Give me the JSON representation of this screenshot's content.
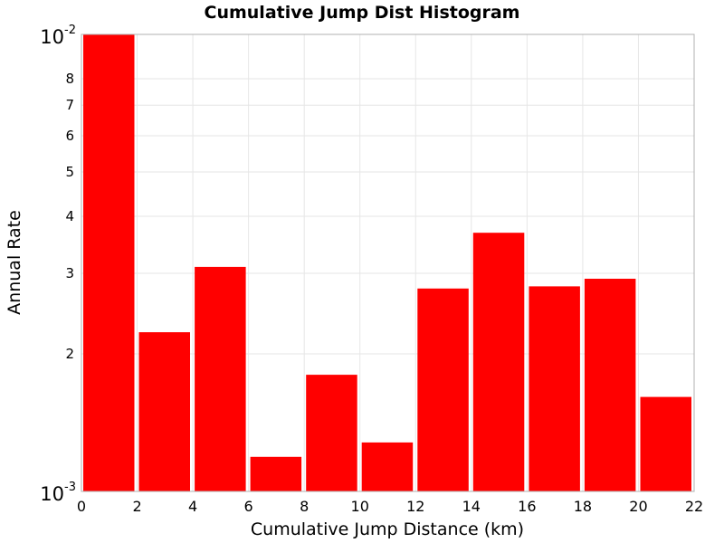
{
  "chart_data": {
    "type": "bar",
    "title": "Cumulative Jump Dist Histogram",
    "xlabel": "Cumulative Jump Distance (km)",
    "ylabel": "Annual Rate",
    "xlim": [
      0,
      22
    ],
    "ylim": [
      0.001,
      0.01
    ],
    "yscale": "log",
    "grid": true,
    "bar_color": "#ff0000",
    "x_ticks": [
      "0",
      "2",
      "4",
      "6",
      "8",
      "10",
      "12",
      "14",
      "16",
      "18",
      "20",
      "22"
    ],
    "y_ticks": [
      {
        "value": 0.001,
        "base": "10",
        "exp": "-3"
      },
      {
        "value": 0.002,
        "label": "2"
      },
      {
        "value": 0.003,
        "label": "3"
      },
      {
        "value": 0.004,
        "label": "4"
      },
      {
        "value": 0.005,
        "label": "5"
      },
      {
        "value": 0.006,
        "label": "6"
      },
      {
        "value": 0.007,
        "label": "7"
      },
      {
        "value": 0.008,
        "label": "8"
      },
      {
        "value": 0.01,
        "base": "10",
        "exp": "-2"
      }
    ],
    "bins": [
      {
        "x0": 0,
        "x1": 2,
        "value": 0.01
      },
      {
        "x0": 2,
        "x1": 4,
        "value": 0.00223
      },
      {
        "x0": 4,
        "x1": 6,
        "value": 0.0031
      },
      {
        "x0": 6,
        "x1": 8,
        "value": 0.00119
      },
      {
        "x0": 8,
        "x1": 10,
        "value": 0.0018
      },
      {
        "x0": 10,
        "x1": 12,
        "value": 0.00128
      },
      {
        "x0": 12,
        "x1": 14,
        "value": 0.00278
      },
      {
        "x0": 14,
        "x1": 16,
        "value": 0.00368
      },
      {
        "x0": 16,
        "x1": 18,
        "value": 0.00281
      },
      {
        "x0": 18,
        "x1": 20,
        "value": 0.00292
      },
      {
        "x0": 20,
        "x1": 22,
        "value": 0.00161
      }
    ]
  }
}
